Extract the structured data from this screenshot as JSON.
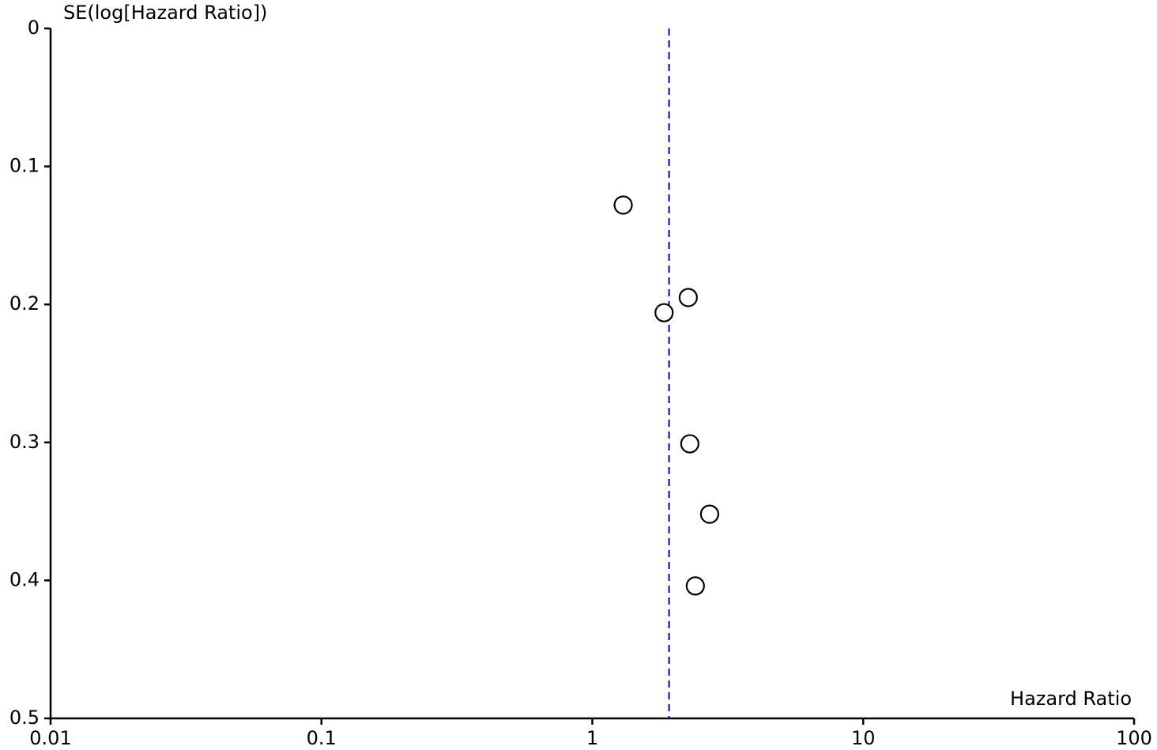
{
  "chart_data": {
    "type": "scatter",
    "xlabel": "Hazard Ratio",
    "ylabel": "SE(log[Hazard Ratio])",
    "xscale": "log",
    "xlim": [
      0.01,
      100
    ],
    "xticks": [
      0.01,
      0.1,
      1,
      10,
      100
    ],
    "ylim": [
      0,
      0.5
    ],
    "yticks": [
      0,
      0.1,
      0.2,
      0.3,
      0.4,
      0.5
    ],
    "y_inverted": true,
    "grid": false,
    "color": "#000000",
    "x": [
      1.3,
      2.26,
      1.84,
      2.29,
      2.71,
      2.4
    ],
    "values": [
      0.128,
      0.195,
      0.206,
      0.301,
      0.352,
      0.404
    ],
    "reference_line": {
      "value": 1.92,
      "color": "#0000cc"
    }
  }
}
